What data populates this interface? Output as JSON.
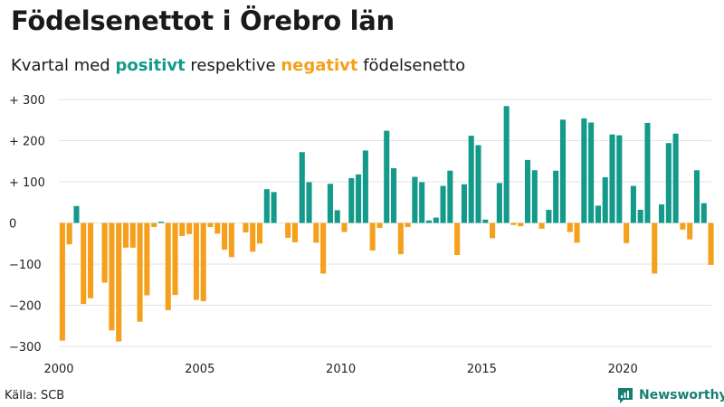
{
  "header": {
    "title": "Födelsenettot i Örebro län",
    "subtitle_start": "Kvartal med ",
    "subtitle_pos": "positivt",
    "subtitle_mid": " respektive ",
    "subtitle_neg": "negativt",
    "subtitle_end": " födelsenetto"
  },
  "footer": {
    "source": "Källa: SCB",
    "brand": "Newsworthy"
  },
  "colors": {
    "positive": "#139a8a",
    "negative": "#f5a01c",
    "grid": "#e3e3e3",
    "brand": "#167f73"
  },
  "chart_data": {
    "type": "bar",
    "title": "Födelsenettot i Örebro län",
    "xlabel": "",
    "ylabel": "",
    "ylim": [
      -300,
      300
    ],
    "grid": true,
    "start": "2000 Q1",
    "y_ticks": [
      {
        "value": 300,
        "label": "+ 300"
      },
      {
        "value": 200,
        "label": "+ 200"
      },
      {
        "value": 100,
        "label": "+ 100"
      },
      {
        "value": 0,
        "label": "0"
      },
      {
        "value": -100,
        "label": "−100"
      },
      {
        "value": -200,
        "label": "−200"
      },
      {
        "value": -300,
        "label": "−300"
      }
    ],
    "x_ticks": [
      "2000",
      "2005",
      "2010",
      "2015",
      "2020"
    ],
    "values": [
      -286,
      -52,
      41,
      -197,
      -183,
      0,
      -145,
      -261,
      -288,
      -60,
      -60,
      -240,
      -176,
      -10,
      3,
      -212,
      -175,
      -32,
      -27,
      -187,
      -190,
      -10,
      -26,
      -65,
      -83,
      0,
      -23,
      -70,
      -50,
      82,
      75,
      0,
      -36,
      -47,
      172,
      99,
      -48,
      -123,
      95,
      31,
      -22,
      109,
      118,
      176,
      -67,
      -12,
      224,
      133,
      -76,
      -10,
      112,
      99,
      6,
      13,
      90,
      127,
      -78,
      94,
      212,
      189,
      8,
      -37,
      97,
      284,
      -5,
      -8,
      153,
      128,
      -14,
      32,
      127,
      251,
      -22,
      -48,
      254,
      244,
      42,
      111,
      215,
      213,
      -49,
      90,
      32,
      243,
      -123,
      45,
      194,
      217,
      -16,
      -40,
      128,
      48,
      -102
    ]
  }
}
